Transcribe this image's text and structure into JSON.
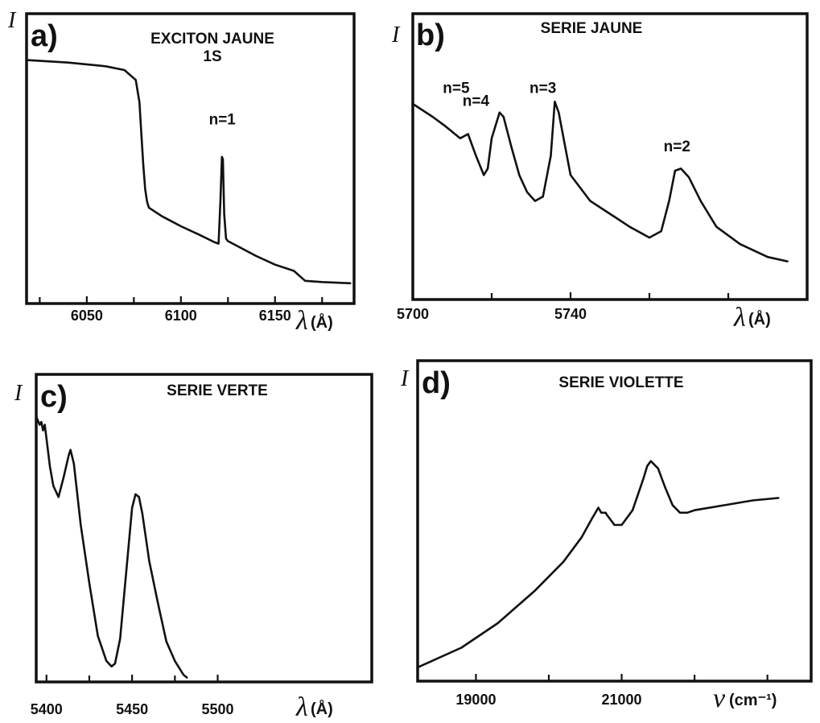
{
  "chart_data": [
    {
      "type": "line",
      "panel": "a)",
      "title": "EXCITON JAUNE",
      "subtitle": "1S",
      "ylabel": "I",
      "xlabel_symbol": "λ",
      "xlabel_unit": "(Å)",
      "xlim": [
        6018,
        6192
      ],
      "ylim": [
        0,
        1
      ],
      "x_ticks": [
        6050,
        6100,
        6150
      ],
      "annotations": [
        {
          "text": "n=1",
          "x": 6122,
          "y": 0.66
        }
      ],
      "x": [
        6018,
        6040,
        6060,
        6070,
        6076,
        6078,
        6079,
        6080,
        6081,
        6082,
        6083,
        6090,
        6100,
        6110,
        6118,
        6120,
        6121,
        6121.8,
        6122.3,
        6123,
        6124,
        6125,
        6130,
        6140,
        6150,
        6160,
        6166,
        6175,
        6190
      ],
      "y": [
        0.92,
        0.91,
        0.895,
        0.88,
        0.84,
        0.75,
        0.62,
        0.5,
        0.4,
        0.35,
        0.325,
        0.29,
        0.25,
        0.215,
        0.185,
        0.18,
        0.35,
        0.53,
        0.52,
        0.3,
        0.2,
        0.19,
        0.17,
        0.13,
        0.095,
        0.07,
        0.03,
        0.025,
        0.02
      ]
    },
    {
      "type": "line",
      "panel": "b)",
      "title": "SERIE JAUNE",
      "ylabel": "I",
      "xlabel_symbol": "λ",
      "xlabel_unit": "(Å)",
      "xlim": [
        5700,
        5800
      ],
      "ylim": [
        0,
        1
      ],
      "x_ticks": [
        5700,
        5740
      ],
      "annotations": [
        {
          "text": "n=5",
          "x": 5711,
          "y": 0.83
        },
        {
          "text": "n=4",
          "x": 5716,
          "y": 0.77
        },
        {
          "text": "n=3",
          "x": 5733,
          "y": 0.83
        },
        {
          "text": "n=2",
          "x": 5767,
          "y": 0.56
        }
      ],
      "x": [
        5700,
        5705,
        5708,
        5710,
        5712,
        5714,
        5716,
        5718,
        5719,
        5720,
        5722,
        5723,
        5725,
        5727,
        5729,
        5731,
        5733,
        5735,
        5736,
        5737,
        5740,
        5745,
        5750,
        5755,
        5760,
        5763,
        5765,
        5766.5,
        5768,
        5770,
        5773,
        5777,
        5783,
        5790,
        5795
      ],
      "y": [
        0.78,
        0.72,
        0.68,
        0.65,
        0.62,
        0.64,
        0.54,
        0.45,
        0.48,
        0.62,
        0.74,
        0.72,
        0.58,
        0.45,
        0.37,
        0.33,
        0.35,
        0.54,
        0.79,
        0.74,
        0.45,
        0.33,
        0.27,
        0.21,
        0.16,
        0.19,
        0.33,
        0.47,
        0.48,
        0.44,
        0.33,
        0.21,
        0.13,
        0.07,
        0.05
      ]
    },
    {
      "type": "line",
      "panel": "c)",
      "title": "SERIE VERTE",
      "ylabel": "I",
      "xlabel_symbol": "λ",
      "xlabel_unit": "(Å)",
      "xlim": [
        5394,
        5590
      ],
      "ylim": [
        0,
        1
      ],
      "x_ticks": [
        5400,
        5450,
        5500
      ],
      "x": [
        5394,
        5396,
        5397,
        5398,
        5399,
        5400,
        5402,
        5404,
        5407,
        5410,
        5413,
        5414,
        5416,
        5420,
        5425,
        5430,
        5435,
        5438,
        5440,
        5443,
        5447,
        5450,
        5452,
        5454,
        5456,
        5460,
        5465,
        5470,
        5475,
        5480,
        5482
      ],
      "y": [
        0.95,
        0.92,
        0.93,
        0.9,
        0.92,
        0.87,
        0.77,
        0.7,
        0.66,
        0.73,
        0.81,
        0.83,
        0.78,
        0.56,
        0.35,
        0.16,
        0.07,
        0.05,
        0.06,
        0.15,
        0.42,
        0.62,
        0.67,
        0.66,
        0.6,
        0.43,
        0.28,
        0.14,
        0.07,
        0.02,
        0.01
      ]
    },
    {
      "type": "line",
      "panel": "d)",
      "title": "SERIE VIOLETTE",
      "ylabel": "I",
      "xlabel_symbol": "ν",
      "xlabel_unit": "(cm⁻¹)",
      "xlim": [
        18200,
        23600
      ],
      "ylim": [
        0,
        1
      ],
      "x_ticks": [
        19000,
        21000
      ],
      "x": [
        18200,
        18800,
        19300,
        19800,
        20200,
        20450,
        20600,
        20680,
        20720,
        20780,
        20800,
        20850,
        20900,
        21000,
        21150,
        21300,
        21350,
        21400,
        21500,
        21600,
        21700,
        21800,
        21900,
        22000,
        22400,
        22800,
        23150
      ],
      "y": [
        0.02,
        0.1,
        0.2,
        0.33,
        0.45,
        0.55,
        0.63,
        0.67,
        0.65,
        0.65,
        0.64,
        0.62,
        0.6,
        0.6,
        0.66,
        0.79,
        0.84,
        0.86,
        0.83,
        0.75,
        0.68,
        0.65,
        0.65,
        0.66,
        0.68,
        0.7,
        0.71
      ]
    }
  ]
}
